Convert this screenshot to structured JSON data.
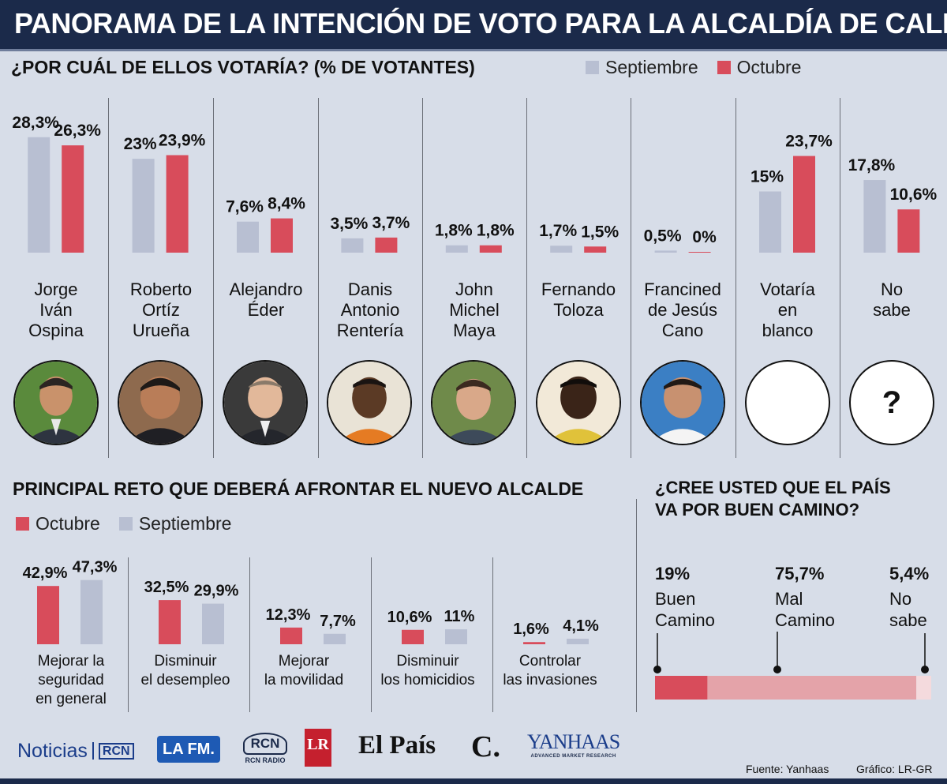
{
  "title": "PANORAMA DE LA INTENCIÓN DE VOTO PARA LA ALCALDÍA DE CALI",
  "colors": {
    "septiembre": "#b8bfd2",
    "octubre": "#d84c5b",
    "bg": "#d7dde8",
    "header": "#1b2a4a"
  },
  "section1": {
    "heading": "¿POR CUÁL DE ELLOS VOTARÍA?  (% DE VOTANTES)",
    "legend": [
      "Septiembre",
      "Octubre"
    ]
  },
  "section2": {
    "heading": "PRINCIPAL RETO QUE DEBERÁ AFRONTAR EL NUEVO ALCALDE",
    "legend": [
      "Octubre",
      "Septiembre"
    ]
  },
  "section3": {
    "heading_line1": "¿CREE USTED QUE EL PAÍS",
    "heading_line2": "VA POR BUEN CAMINO?"
  },
  "chart_data": [
    {
      "type": "bar",
      "title": "¿POR CUÁL DE ELLOS VOTARÍA? (% DE VOTANTES)",
      "categories": [
        [
          "Jorge",
          "Iván",
          "Ospina"
        ],
        [
          "Roberto",
          "Ortíz",
          "Urueña"
        ],
        [
          "Alejandro",
          "Éder"
        ],
        [
          "Danis",
          "Antonio",
          "Rentería"
        ],
        [
          "John",
          "Michel",
          "Maya"
        ],
        [
          "Fernando",
          "Toloza"
        ],
        [
          "Francined",
          "de Jesús",
          "Cano"
        ],
        [
          "Votaría",
          "en",
          "blanco"
        ],
        [
          "No",
          "sabe"
        ]
      ],
      "series": [
        {
          "name": "Septiembre",
          "values": [
            28.3,
            23,
            7.6,
            3.5,
            1.8,
            1.7,
            0.5,
            15,
            17.8
          ],
          "labels": [
            "28,3%",
            "23%",
            "7,6%",
            "3,5%",
            "1,8%",
            "1,7%",
            "0,5%",
            "15%",
            "17,8%"
          ]
        },
        {
          "name": "Octubre",
          "values": [
            26.3,
            23.9,
            8.4,
            3.7,
            1.8,
            1.5,
            0,
            23.7,
            10.6
          ],
          "labels": [
            "26,3%",
            "23,9%",
            "8,4%",
            "3,7%",
            "1,8%",
            "1,5%",
            "0%",
            "23,7%",
            "10,6%"
          ]
        }
      ],
      "ylim": [
        0,
        30
      ],
      "avatar_question_mark": "?"
    },
    {
      "type": "bar",
      "title": "PRINCIPAL RETO QUE DEBERÁ AFRONTAR EL NUEVO ALCALDE",
      "categories": [
        [
          "Mejorar la",
          "seguridad",
          "en general"
        ],
        [
          "Disminuir",
          "el desempleo"
        ],
        [
          "Mejorar",
          "la movilidad"
        ],
        [
          "Disminuir",
          "los homicidios"
        ],
        [
          "Controlar",
          "las invasiones"
        ]
      ],
      "series": [
        {
          "name": "Octubre",
          "values": [
            42.9,
            32.5,
            12.3,
            10.6,
            1.6
          ],
          "labels": [
            "42,9%",
            "32,5%",
            "12,3%",
            "10,6%",
            "1,6%"
          ]
        },
        {
          "name": "Septiembre",
          "values": [
            47.3,
            29.9,
            7.7,
            11,
            4.1
          ],
          "labels": [
            "47,3%",
            "29,9%",
            "7,7%",
            "11%",
            "4,1%"
          ]
        }
      ],
      "ylim": [
        0,
        50
      ]
    },
    {
      "type": "bar",
      "title": "¿CREE USTED QUE EL PAÍS VA POR BUEN CAMINO?",
      "categories": [
        [
          "Buen",
          "Camino"
        ],
        [
          "Mal",
          "Camino"
        ],
        [
          "No",
          "sabe"
        ]
      ],
      "values": [
        19,
        75.7,
        5.4
      ],
      "labels": [
        "19%",
        "75,7%",
        "5,4%"
      ],
      "colors": [
        "#d84c5b",
        "#e4a3a9",
        "#f4dadd"
      ]
    }
  ],
  "logos": {
    "noticias": "Noticias",
    "rcn_small": "RCN",
    "lafm": "LA FM.",
    "rcn_radio": "RCN RADIO",
    "lr": "LR",
    "elpais": "El País",
    "colombiano": "C.",
    "yanhaas": "YANHAAS",
    "yanhaas_sub": "ADVANCED MARKET RESEARCH"
  },
  "footer": {
    "fuente": "Fuente:  Yanhaas",
    "grafico": "Gráfico: LR-GR"
  }
}
